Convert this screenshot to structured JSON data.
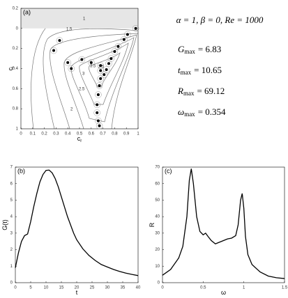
{
  "chart_data": [
    {
      "type": "scatter",
      "panel_label": "(a)",
      "x_label": "c",
      "x_label_sub": "r",
      "y_label": "c",
      "y_label_sub": "i",
      "x": [
        0.33,
        0.28,
        0.4,
        0.43,
        0.52,
        0.6,
        0.68,
        0.98,
        0.91,
        0.88,
        0.83,
        0.8,
        0.77,
        0.75,
        0.73,
        0.71,
        0.68,
        0.68,
        0.67,
        0.66,
        0.65,
        0.65,
        0.66,
        0.67
      ],
      "values": [
        -0.12,
        -0.22,
        -0.34,
        -0.4,
        -0.31,
        -0.34,
        -0.37,
        0.0,
        -0.06,
        -0.11,
        -0.18,
        -0.23,
        -0.3,
        -0.35,
        -0.41,
        -0.46,
        -0.42,
        -0.5,
        -0.57,
        -0.66,
        -0.76,
        -0.84,
        -0.92,
        -0.97
      ],
      "color": "#000000",
      "shaded_region": true,
      "annotations": [
        "1",
        "1.5",
        "2",
        "2.5",
        "3",
        "3.5",
        "2.5"
      ],
      "xlim": [
        0,
        1
      ],
      "xticks": [
        0,
        0.1,
        0.2,
        0.3,
        0.4,
        0.5,
        0.6,
        0.7,
        0.8,
        0.9,
        1
      ],
      "ylim": [
        -1,
        0.2
      ],
      "yticks": [
        {
          "value": 0.2,
          "label": "0.2"
        },
        0,
        {
          "value": -0.2,
          "label": "0.2"
        },
        {
          "value": -0.4,
          "label": "0.4"
        },
        {
          "value": -0.6,
          "label": "0.6"
        },
        {
          "value": -0.8,
          "label": "0.8"
        },
        {
          "value": -1,
          "label": "1"
        }
      ]
    },
    {
      "type": "line",
      "panel_label": "(b)",
      "x_label": "t",
      "y_label": "G(t)",
      "color": "#000000",
      "x": [
        0,
        1,
        2,
        3,
        4,
        5,
        6,
        7,
        8,
        9,
        10,
        11,
        12,
        13,
        14,
        15,
        16,
        17,
        18,
        19,
        20,
        22,
        24,
        26,
        28,
        30,
        32,
        34,
        36,
        38,
        40
      ],
      "values": [
        0.9,
        1.8,
        2.5,
        2.85,
        2.95,
        3.7,
        4.6,
        5.4,
        6.1,
        6.55,
        6.8,
        6.82,
        6.65,
        6.3,
        5.8,
        5.2,
        4.6,
        4.0,
        3.5,
        3.0,
        2.6,
        2.05,
        1.65,
        1.35,
        1.1,
        0.95,
        0.8,
        0.68,
        0.58,
        0.5,
        0.43
      ],
      "xlim": [
        0,
        40
      ],
      "xticks": [
        0,
        5,
        10,
        15,
        20,
        25,
        30,
        35,
        40
      ],
      "ylim": [
        0,
        7
      ],
      "yticks": [
        0,
        1,
        2,
        3,
        4,
        5,
        6,
        7
      ]
    },
    {
      "type": "line",
      "panel_label": "(c)",
      "x_label": "ω",
      "y_label": "R",
      "color": "#000000",
      "x": [
        0,
        0.1,
        0.2,
        0.25,
        0.3,
        0.33,
        0.354,
        0.38,
        0.42,
        0.46,
        0.5,
        0.53,
        0.56,
        0.6,
        0.65,
        0.7,
        0.75,
        0.8,
        0.85,
        0.9,
        0.93,
        0.96,
        0.98,
        1.0,
        1.02,
        1.05,
        1.1,
        1.2,
        1.3,
        1.4,
        1.5
      ],
      "values": [
        4.5,
        8,
        15,
        22,
        40,
        62,
        69,
        60,
        40,
        31,
        29,
        30,
        28,
        25.5,
        23.5,
        24.5,
        25.5,
        26.5,
        27,
        28.5,
        35,
        50,
        54,
        45,
        28,
        17,
        11,
        6.5,
        4,
        3,
        2.5
      ],
      "xlim": [
        0,
        1.5
      ],
      "xticks": [
        0,
        0.5,
        1,
        1.5
      ],
      "ylim": [
        0,
        70
      ],
      "yticks": [
        0,
        10,
        20,
        30,
        40,
        50,
        60,
        70
      ]
    }
  ],
  "parameters": {
    "header": "α = 1, β = 0, Re = 1000",
    "lines": [
      {
        "name": "G",
        "sub": "max",
        "text": "= 6.83"
      },
      {
        "name": "t",
        "sub": "max",
        "text": "= 10.65"
      },
      {
        "name": "R",
        "sub": "max",
        "text": "= 69.12"
      },
      {
        "name": "ω",
        "sub": "max",
        "text": "= 0.354"
      }
    ]
  }
}
